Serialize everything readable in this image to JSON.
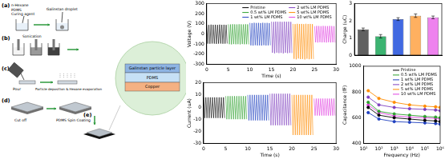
{
  "diagram": {
    "panels": [
      {
        "label": "(a)",
        "texts": [
          "n-Hexane",
          "PDMS",
          "Curing agent",
          "Galinstan droplet"
        ]
      },
      {
        "label": "(b)",
        "texts": [
          "Sonication"
        ]
      },
      {
        "label": "(c)",
        "texts": [
          "Pour",
          "Particle deposition & Hexane evaporation"
        ]
      },
      {
        "label": "(d)",
        "texts": [
          "Cut off",
          "PDMS Spin Coating"
        ]
      },
      {
        "label": "(e)"
      }
    ],
    "cross_section": {
      "layers": [
        "Galinstan particle layer",
        "PDMS",
        "Copper"
      ]
    }
  },
  "chart_data": [
    {
      "type": "line",
      "x_label": "Time (s)",
      "y_label": "Voltage (V)",
      "xlim": [
        0,
        30
      ],
      "xticks": [
        0,
        5,
        10,
        15,
        20,
        25,
        30
      ],
      "ylim": [
        -300,
        300
      ],
      "yticks": [
        -300,
        -200,
        -100,
        0,
        100,
        200,
        300
      ],
      "grid": false,
      "legend": "upper right",
      "series": [
        {
          "name": "Pristine",
          "color": "#000000",
          "x": [
            0,
            0.25,
            0.5,
            0.75,
            1,
            1.25,
            1.5,
            1.75,
            2,
            2.25,
            2.5,
            2.75,
            3,
            3.25,
            3.5,
            3.75,
            4,
            4.25,
            4.5,
            4.75
          ],
          "values": [
            92,
            -95,
            90,
            -96,
            93,
            -94,
            91,
            -95,
            92,
            -97,
            90,
            -95,
            93,
            -94,
            91,
            -96,
            92,
            -95,
            90,
            -94
          ]
        },
        {
          "name": "0.5 wt% LM PDMS",
          "color": "#2ca02c",
          "x": [
            5,
            5.25,
            5.5,
            5.75,
            6,
            6.25,
            6.5,
            6.75,
            7,
            7.25,
            7.5,
            7.75,
            8,
            8.25,
            8.5,
            8.75,
            9,
            9.25,
            9.5,
            9.75
          ],
          "values": [
            96,
            -100,
            95,
            -102,
            97,
            -99,
            96,
            -101,
            95,
            -100,
            97,
            -102,
            96,
            -99,
            95,
            -101,
            97,
            -100,
            96,
            -102
          ]
        },
        {
          "name": "1 wt% LM PDMS",
          "color": "#1f3fbf",
          "x": [
            10,
            10.25,
            10.5,
            10.75,
            11,
            11.25,
            11.5,
            11.75,
            12,
            12.25,
            12.5,
            12.75,
            13,
            13.25,
            13.5,
            13.75,
            14,
            14.25,
            14.5,
            14.75
          ],
          "values": [
            110,
            -112,
            108,
            -114,
            111,
            -110,
            109,
            -113,
            110,
            -112,
            108,
            -114,
            111,
            -110,
            109,
            -113,
            110,
            -112,
            108,
            -111
          ]
        },
        {
          "name": "2 wt% LM PDMS",
          "color": "#7f3fbf",
          "x": [
            15,
            15.25,
            15.5,
            15.75,
            16,
            16.25,
            16.5,
            16.75,
            17,
            17.25,
            17.5,
            17.75,
            18,
            18.25,
            18.5,
            18.75,
            19,
            19.25,
            19.5,
            19.75
          ],
          "values": [
            122,
            -185,
            120,
            -190,
            123,
            -184,
            121,
            -188,
            122,
            -186,
            120,
            -191,
            123,
            -185,
            121,
            -189,
            122,
            -186,
            120,
            -188
          ]
        },
        {
          "name": "5 wt% LM PDMS",
          "color": "#ff8c00",
          "x": [
            20,
            20.25,
            20.5,
            20.75,
            21,
            21.25,
            21.5,
            21.75,
            22,
            22.25,
            22.5,
            22.75,
            23,
            23.25,
            23.5,
            23.75,
            24,
            24.25,
            24.5,
            24.75
          ],
          "values": [
            100,
            -245,
            98,
            -250,
            101,
            -242,
            99,
            -248,
            100,
            -246,
            98,
            -251,
            101,
            -244,
            99,
            -249,
            100,
            -246,
            98,
            -247
          ]
        },
        {
          "name": "10 wt% LM PDMS",
          "color": "#e040e0",
          "x": [
            25,
            25.25,
            25.5,
            25.75,
            26,
            26.25,
            26.5,
            26.75,
            27,
            27.25,
            27.5,
            27.75,
            28,
            28.25,
            28.5,
            28.75,
            29,
            29.25,
            29.5,
            29.75
          ],
          "values": [
            78,
            -82,
            80,
            -84,
            79,
            -81,
            78,
            -83,
            80,
            -82,
            79,
            -84,
            78,
            -81,
            80,
            -83,
            79,
            -82,
            78,
            -84
          ]
        }
      ]
    },
    {
      "type": "line",
      "x_label": "Time (s)",
      "y_label": "Current (uA)",
      "xlim": [
        0,
        30
      ],
      "xticks": [
        0,
        5,
        10,
        15,
        20,
        25,
        30
      ],
      "ylim": [
        -30,
        20
      ],
      "yticks": [
        -30,
        -20,
        -10,
        0,
        10,
        20
      ],
      "grid": false,
      "series": [
        {
          "color": "#000000",
          "x": [
            0,
            0.25,
            0.5,
            0.75,
            1,
            1.25,
            1.5,
            1.75,
            2,
            2.25,
            2.5,
            2.75,
            3,
            3.25,
            3.5,
            3.75,
            4,
            4.25,
            4.5,
            4.75
          ],
          "values": [
            8,
            -9,
            8,
            -9,
            8,
            -9,
            8,
            -9,
            8,
            -9,
            8,
            -9,
            8,
            -9,
            8,
            -9,
            8,
            -9,
            8,
            -9
          ]
        },
        {
          "color": "#2ca02c",
          "x": [
            5,
            5.25,
            5.5,
            5.75,
            6,
            6.25,
            6.5,
            6.75,
            7,
            7.25,
            7.5,
            7.75,
            8,
            8.25,
            8.5,
            8.75,
            9,
            9.25,
            9.5,
            9.75
          ],
          "values": [
            9,
            -10,
            9,
            -10,
            9,
            -10,
            9,
            -10,
            9,
            -10,
            9,
            -10,
            9,
            -10,
            9,
            -10,
            9,
            -10,
            9,
            -10
          ]
        },
        {
          "color": "#1f3fbf",
          "x": [
            10,
            10.25,
            10.5,
            10.75,
            11,
            11.25,
            11.5,
            11.75,
            12,
            12.25,
            12.5,
            12.75,
            13,
            13.25,
            13.5,
            13.75,
            14,
            14.25,
            14.5,
            14.75
          ],
          "values": [
            10,
            -11,
            10,
            -11,
            10,
            -11,
            10,
            -11,
            10,
            -11,
            10,
            -11,
            10,
            -11,
            10,
            -11,
            10,
            -11,
            10,
            -11
          ]
        },
        {
          "color": "#7f3fbf",
          "x": [
            15,
            15.25,
            15.5,
            15.75,
            16,
            16.25,
            16.5,
            16.75,
            17,
            17.25,
            17.5,
            17.75,
            18,
            18.25,
            18.5,
            18.75,
            19,
            19.25,
            19.5,
            19.75
          ],
          "values": [
            11,
            -15,
            11,
            -15,
            11,
            -15,
            11,
            -15,
            11,
            -15,
            11,
            -15,
            11,
            -15,
            11,
            -15,
            11,
            -15,
            11,
            -15
          ]
        },
        {
          "color": "#ff8c00",
          "x": [
            20,
            20.25,
            20.5,
            20.75,
            21,
            21.25,
            21.5,
            21.75,
            22,
            22.25,
            22.5,
            22.75,
            23,
            23.25,
            23.5,
            23.75,
            24,
            24.25,
            24.5,
            24.75
          ],
          "values": [
            10,
            -23,
            10,
            -23,
            10,
            -23,
            10,
            -23,
            10,
            -23,
            10,
            -23,
            10,
            -23,
            10,
            -23,
            10,
            -23,
            10,
            -23
          ]
        },
        {
          "color": "#e040e0",
          "x": [
            25,
            25.25,
            25.5,
            25.75,
            26,
            26.25,
            26.5,
            26.75,
            27,
            27.25,
            27.5,
            27.75,
            28,
            28.25,
            28.5,
            28.75,
            29,
            29.25,
            29.5,
            29.75
          ],
          "values": [
            7,
            -7,
            7,
            -7,
            7,
            -7,
            7,
            -7,
            7,
            -7,
            7,
            -7,
            7,
            -7,
            7,
            -7,
            7,
            -7,
            7,
            -7
          ]
        }
      ]
    },
    {
      "type": "bar",
      "y_label": "Charge (uC)",
      "categories": [
        null,
        null,
        null,
        null,
        null
      ],
      "values": [
        1.5,
        1.1,
        2.1,
        2.3,
        2.2
      ],
      "errors": [
        0.08,
        0.1,
        0.08,
        0.1,
        0.08
      ],
      "colors": [
        "#606060",
        "#3cb371",
        "#4169e1",
        "#ffb060",
        "#ee82ee"
      ],
      "ylim": [
        0,
        3
      ],
      "yticks": [
        0,
        1,
        2,
        3
      ],
      "tick_labels": "y",
      "grid": false
    },
    {
      "type": "line",
      "log": "x",
      "x_label": "Frequency (Hz)",
      "y_label": "Capacitance (fF)",
      "x": [
        20,
        100,
        1000,
        10000,
        100000,
        500000,
        1000000
      ],
      "xlim": [
        10,
        1000000
      ],
      "xticks": [
        {
          "value": 10,
          "label": "10¹"
        },
        {
          "value": 100,
          "label": "10²"
        },
        {
          "value": 1000,
          "label": "10³"
        },
        {
          "value": 10000,
          "label": "10⁴"
        },
        {
          "value": 100000,
          "label": "10⁵"
        },
        {
          "value": 1000000,
          "label": "10⁶"
        }
      ],
      "ylim": [
        400,
        1000
      ],
      "yticks": [
        400,
        600,
        800,
        1000
      ],
      "grid": false,
      "legend": "upper right",
      "marker": "circle",
      "series": [
        {
          "name": "Pristine",
          "color": "#000000",
          "values": [
            680,
            620,
            600,
            590,
            580,
            575,
            570
          ]
        },
        {
          "name": "0.5 wt% LM PDMS",
          "color": "#2ca02c",
          "values": [
            720,
            650,
            630,
            620,
            610,
            605,
            600
          ]
        },
        {
          "name": "1 wt% LM PDMS",
          "color": "#1f3fbf",
          "values": [
            640,
            590,
            570,
            565,
            560,
            555,
            550
          ]
        },
        {
          "name": "2 wt% LM PDMS",
          "color": "#7f3fbf",
          "values": [
            760,
            700,
            680,
            670,
            665,
            660,
            655
          ]
        },
        {
          "name": "5 wt% LM PDMS",
          "color": "#ff8c00",
          "values": [
            810,
            750,
            720,
            700,
            690,
            685,
            680
          ]
        },
        {
          "name": "10 wt% LM PDMS",
          "color": "#e040e0",
          "values": [
            700,
            640,
            615,
            605,
            600,
            595,
            590
          ]
        }
      ]
    }
  ]
}
